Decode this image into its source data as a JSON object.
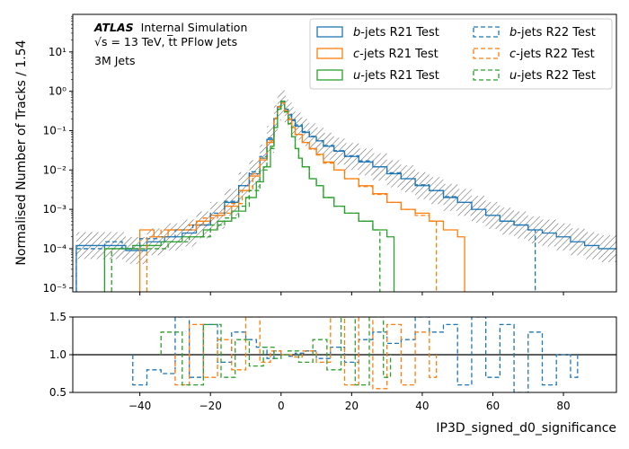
{
  "chart_data": [
    {
      "type": "line",
      "panel": "main",
      "ylabel": "Normalised Number of Tracks / 1.54",
      "yscale": "log",
      "ylim": [
        8e-06,
        90
      ],
      "xlim": [
        -59,
        95
      ],
      "yticks": [
        {
          "value": 1e-05,
          "label": "10⁻⁵"
        },
        {
          "value": 0.0001,
          "label": "10⁻⁴"
        },
        {
          "value": 0.001,
          "label": "10⁻³"
        },
        {
          "value": 0.01,
          "label": "10⁻²"
        },
        {
          "value": 0.1,
          "label": "10⁻¹"
        },
        {
          "value": 1,
          "label": "10⁰"
        },
        {
          "value": 10,
          "label": "10¹"
        }
      ],
      "annotations": {
        "atlas": "ATLAS",
        "status": "Internal Simulation",
        "energy": "√s = 13 TeV, t̅t PFlow Jets",
        "jets": "3M Jets"
      },
      "series": [
        {
          "name": "b-jets R21 Test",
          "flavour": "b",
          "label_rest": "-jets R21 Test",
          "color": "#1f77b4",
          "dash": false,
          "x": [
            -58,
            -49,
            -44,
            -38,
            -33,
            -28,
            -24,
            -20,
            -16,
            -12,
            -9,
            -6,
            -4,
            -2,
            -1,
            0,
            1,
            2,
            3,
            4,
            6,
            8,
            10,
            12,
            15,
            18,
            22,
            26,
            30,
            34,
            38,
            42,
            46,
            50,
            54,
            58,
            62,
            66,
            70,
            74,
            78,
            82,
            86,
            90,
            94
          ],
          "y": [
            0.00012,
            0.00012,
            9e-05,
            0.00015,
            0.0002,
            0.00025,
            0.0004,
            0.0007,
            0.0015,
            0.004,
            0.008,
            0.02,
            0.06,
            0.2,
            0.4,
            0.55,
            0.35,
            0.25,
            0.18,
            0.13,
            0.09,
            0.07,
            0.055,
            0.04,
            0.03,
            0.022,
            0.016,
            0.012,
            0.008,
            0.006,
            0.004,
            0.003,
            0.002,
            0.0015,
            0.001,
            0.0007,
            0.0005,
            0.0004,
            0.0003,
            0.00025,
            0.0002,
            0.00015,
            0.00012,
            0.0001,
            0.0001
          ]
        },
        {
          "name": "c-jets R21 Test",
          "flavour": "c",
          "label_rest": "-jets R21 Test",
          "color": "#ff7f0e",
          "dash": false,
          "x": [
            -40,
            -36,
            -32,
            -28,
            -24,
            -20,
            -16,
            -12,
            -9,
            -6,
            -4,
            -2,
            -1,
            0,
            1,
            2,
            3,
            4,
            6,
            8,
            10,
            12,
            15,
            18,
            22,
            26,
            30,
            34,
            38,
            42,
            46,
            50
          ],
          "y": [
            0.0003,
            0.0002,
            0.0003,
            0.0003,
            0.0005,
            0.0007,
            0.0012,
            0.003,
            0.007,
            0.018,
            0.05,
            0.2,
            0.4,
            0.5,
            0.32,
            0.2,
            0.12,
            0.08,
            0.05,
            0.035,
            0.025,
            0.016,
            0.01,
            0.006,
            0.004,
            0.0025,
            0.0015,
            0.001,
            0.0008,
            0.0005,
            0.0003,
            0.0002
          ]
        },
        {
          "name": "u-jets R21 Test",
          "flavour": "u",
          "label_rest": "-jets R21 Test",
          "color": "#2ca02c",
          "dash": false,
          "x": [
            -50,
            -42,
            -34,
            -28,
            -22,
            -18,
            -14,
            -10,
            -7,
            -5,
            -3,
            -2,
            -1,
            0,
            1,
            2,
            3,
            4,
            5,
            6,
            8,
            10,
            12,
            15,
            18,
            22,
            26,
            30
          ],
          "y": [
            0.0001,
            0.00012,
            0.00015,
            0.0002,
            0.0003,
            0.0005,
            0.0009,
            0.002,
            0.005,
            0.012,
            0.04,
            0.12,
            0.35,
            0.55,
            0.3,
            0.15,
            0.07,
            0.035,
            0.02,
            0.012,
            0.006,
            0.004,
            0.002,
            0.0012,
            0.0008,
            0.0005,
            0.0003,
            0.0002
          ]
        },
        {
          "name": "b-jets R22 Test",
          "flavour": "b",
          "label_rest": "-jets R22 Test",
          "color": "#1f77b4",
          "dash": true,
          "x": [
            -58,
            -50,
            -45,
            -40,
            -35,
            -30,
            -25,
            -20,
            -16,
            -12,
            -9,
            -6,
            -4,
            -2,
            -1,
            0,
            1,
            2,
            3,
            4,
            6,
            8,
            10,
            12,
            15,
            18,
            22,
            26,
            30,
            34,
            38,
            42,
            46,
            50,
            54,
            58,
            62,
            66,
            70
          ],
          "y": [
            0.0001,
            0.00015,
            0.0001,
            0.00018,
            0.0002,
            0.0003,
            0.0004,
            0.0008,
            0.0016,
            0.004,
            0.009,
            0.022,
            0.065,
            0.21,
            0.42,
            0.56,
            0.36,
            0.26,
            0.19,
            0.14,
            0.095,
            0.072,
            0.056,
            0.042,
            0.031,
            0.023,
            0.017,
            0.012,
            0.0085,
            0.006,
            0.0042,
            0.003,
            0.0021,
            0.0015,
            0.001,
            0.0007,
            0.0005,
            0.0004,
            0.0003
          ]
        },
        {
          "name": "c-jets R22 Test",
          "flavour": "c",
          "label_rest": "-jets R22 Test",
          "color": "#ff7f0e",
          "dash": true,
          "x": [
            -38,
            -34,
            -30,
            -26,
            -22,
            -18,
            -14,
            -11,
            -8,
            -6,
            -4,
            -2,
            -1,
            0,
            1,
            2,
            3,
            4,
            6,
            8,
            10,
            12,
            15,
            18,
            22,
            26,
            30,
            34,
            38,
            42
          ],
          "y": [
            0.0002,
            0.0003,
            0.0003,
            0.0004,
            0.0006,
            0.0008,
            0.0014,
            0.003,
            0.008,
            0.02,
            0.055,
            0.21,
            0.41,
            0.5,
            0.31,
            0.19,
            0.12,
            0.08,
            0.05,
            0.034,
            0.024,
            0.015,
            0.01,
            0.006,
            0.0038,
            0.0024,
            0.0015,
            0.001,
            0.0007,
            0.0005
          ]
        },
        {
          "name": "u-jets R22 Test",
          "flavour": "u",
          "label_rest": "-jets R22 Test",
          "color": "#2ca02c",
          "dash": true,
          "x": [
            -48,
            -40,
            -32,
            -26,
            -20,
            -16,
            -12,
            -9,
            -6,
            -4,
            -2,
            -1,
            0,
            1,
            2,
            3,
            4,
            5,
            6,
            8,
            10,
            12,
            15,
            18,
            22,
            26
          ],
          "y": [
            0.0001,
            0.0001,
            0.00015,
            0.0002,
            0.0004,
            0.0006,
            0.0012,
            0.003,
            0.01,
            0.035,
            0.12,
            0.34,
            0.56,
            0.3,
            0.15,
            0.07,
            0.035,
            0.02,
            0.012,
            0.006,
            0.004,
            0.002,
            0.0012,
            0.0008,
            0.0005,
            0.0003
          ]
        }
      ]
    },
    {
      "type": "line",
      "panel": "ratio",
      "xlabel": "IP3D_signed_d0_significance",
      "ylim": [
        0.5,
        1.5
      ],
      "xlim": [
        -59,
        95
      ],
      "xticks": [
        -40,
        -20,
        0,
        20,
        40,
        60,
        80
      ],
      "yticks": [
        0.5,
        1.0,
        1.5
      ],
      "reference": 1.0,
      "series": [
        {
          "flavour": "b",
          "color": "#1f77b4",
          "dash": true,
          "x": [
            -42,
            -38,
            -34,
            -30,
            -26,
            -22,
            -18,
            -14,
            -10,
            -7,
            -4,
            -2,
            0,
            2,
            4,
            7,
            10,
            14,
            18,
            22,
            26,
            30,
            34,
            38,
            42,
            46,
            50,
            54,
            58,
            62,
            66,
            70,
            74,
            78,
            82
          ],
          "y": [
            0.6,
            0.8,
            0.75,
            1.5,
            0.7,
            1.4,
            0.9,
            1.3,
            1.2,
            1.1,
            0.95,
            1.05,
            1.0,
            0.98,
            1.02,
            1.05,
            0.95,
            1.1,
            0.9,
            1.2,
            1.3,
            1.15,
            1.2,
            1.5,
            1.3,
            1.4,
            0.6,
            1.5,
            0.7,
            1.4,
            0.5,
            1.3,
            0.6,
            1.0,
            0.7
          ]
        },
        {
          "flavour": "c",
          "color": "#ff7f0e",
          "dash": true,
          "x": [
            -30,
            -26,
            -22,
            -18,
            -14,
            -10,
            -6,
            -3,
            0,
            3,
            6,
            10,
            14,
            18,
            22,
            26,
            30,
            34,
            38,
            42
          ],
          "y": [
            0.6,
            1.4,
            0.7,
            1.2,
            0.8,
            1.5,
            0.9,
            1.05,
            1.0,
            0.97,
            1.05,
            0.9,
            1.5,
            0.6,
            1.5,
            0.55,
            1.4,
            0.6,
            1.3,
            0.7
          ]
        },
        {
          "flavour": "u",
          "color": "#2ca02c",
          "dash": true,
          "x": [
            -34,
            -28,
            -22,
            -17,
            -13,
            -9,
            -5,
            -2,
            0,
            2,
            5,
            9,
            13,
            17,
            21,
            25,
            29
          ],
          "y": [
            1.3,
            0.6,
            1.4,
            0.7,
            1.2,
            0.85,
            1.1,
            0.95,
            1.0,
            1.05,
            0.9,
            1.2,
            0.8,
            1.5,
            0.6,
            1.5,
            0.7
          ]
        }
      ]
    }
  ]
}
